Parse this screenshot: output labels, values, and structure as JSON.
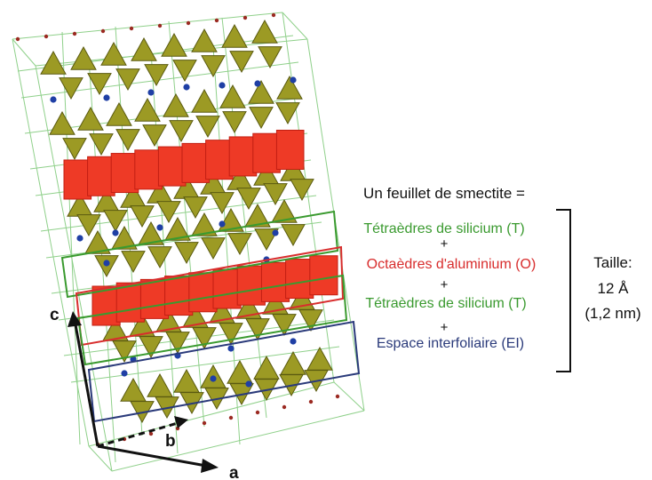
{
  "title": "Un feuillet de smectite =",
  "layers": [
    {
      "label": "Tétraèdres de silicium (T)",
      "color": "#3a9a2f"
    },
    {
      "label": "Octaèdres d'aluminium (O)",
      "color": "#d82d2d"
    },
    {
      "label": "Tétraèdres de silicium (T)",
      "color": "#3a9a2f"
    },
    {
      "label": "Espace interfoliaire (EI)",
      "color": "#2a3a7a"
    }
  ],
  "plus_sign": "+",
  "size": {
    "heading": "Taille:",
    "angstrom": "12 Å",
    "nm": "(1,2 nm)"
  },
  "axes": {
    "a": "a",
    "b": "b",
    "c": "c"
  },
  "colors": {
    "tetrahedra": "#9c9a24",
    "octahedra": "#ee3a26",
    "cell_lines": "#8fd08a",
    "cations": "#1f3fa5",
    "oxygen": "#9b2a22"
  }
}
